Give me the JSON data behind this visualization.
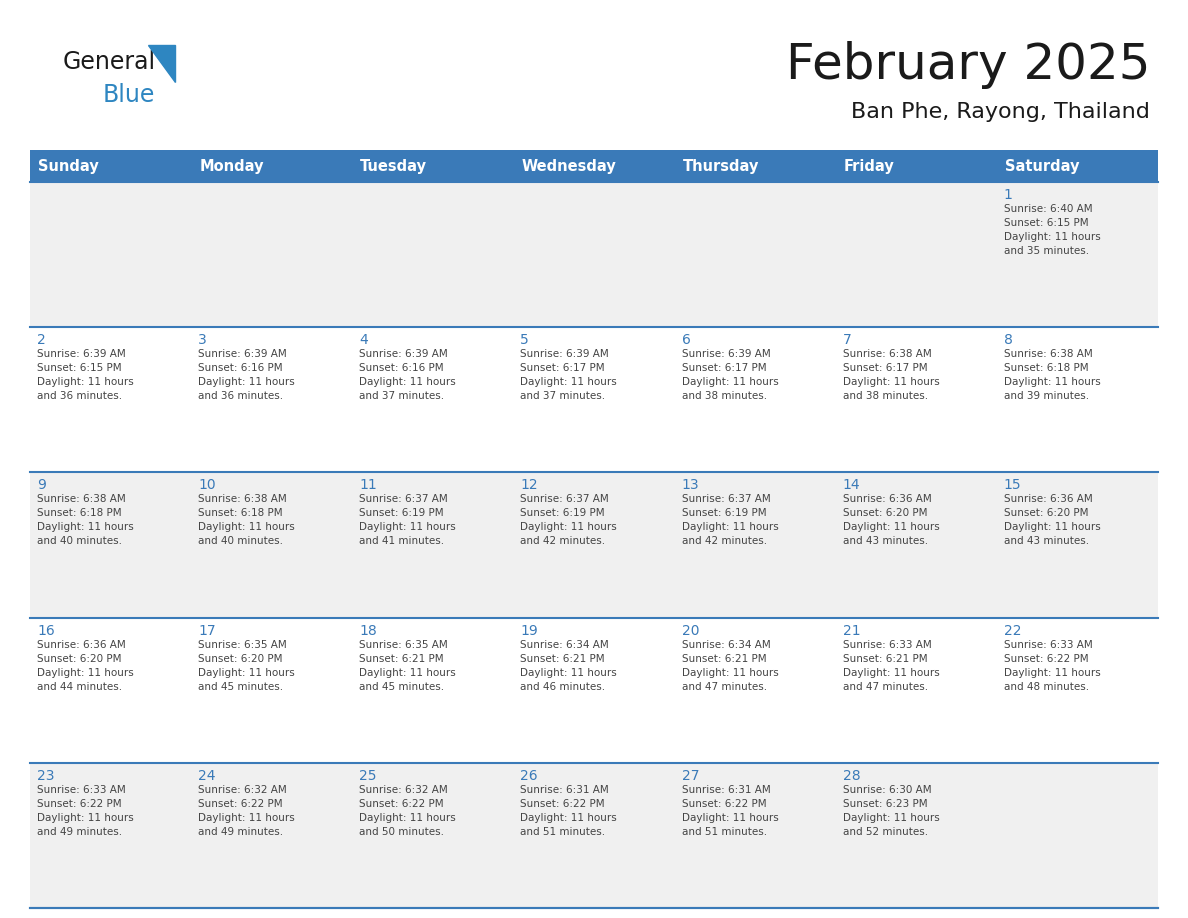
{
  "title": "February 2025",
  "subtitle": "Ban Phe, Rayong, Thailand",
  "header_color": "#3A7AB8",
  "header_text_color": "#FFFFFF",
  "days_of_week": [
    "Sunday",
    "Monday",
    "Tuesday",
    "Wednesday",
    "Thursday",
    "Friday",
    "Saturday"
  ],
  "bg_color": "#FFFFFF",
  "cell_bg_row0": "#F0F0F0",
  "cell_bg_row1": "#FFFFFF",
  "cell_bg_row2": "#F0F0F0",
  "cell_bg_row3": "#FFFFFF",
  "cell_bg_row4": "#F0F0F0",
  "border_color": "#3A7AB8",
  "day_num_color": "#3A7AB8",
  "text_color": "#444444",
  "title_color": "#1a1a1a",
  "logo_general_color": "#1a1a1a",
  "logo_blue_color": "#2E86C1",
  "calendar_data": [
    [
      null,
      null,
      null,
      null,
      null,
      null,
      {
        "day": "1",
        "sunrise": "6:40 AM",
        "sunset": "6:15 PM",
        "daylight": "11 hours\nand 35 minutes."
      }
    ],
    [
      {
        "day": "2",
        "sunrise": "6:39 AM",
        "sunset": "6:15 PM",
        "daylight": "11 hours\nand 36 minutes."
      },
      {
        "day": "3",
        "sunrise": "6:39 AM",
        "sunset": "6:16 PM",
        "daylight": "11 hours\nand 36 minutes."
      },
      {
        "day": "4",
        "sunrise": "6:39 AM",
        "sunset": "6:16 PM",
        "daylight": "11 hours\nand 37 minutes."
      },
      {
        "day": "5",
        "sunrise": "6:39 AM",
        "sunset": "6:17 PM",
        "daylight": "11 hours\nand 37 minutes."
      },
      {
        "day": "6",
        "sunrise": "6:39 AM",
        "sunset": "6:17 PM",
        "daylight": "11 hours\nand 38 minutes."
      },
      {
        "day": "7",
        "sunrise": "6:38 AM",
        "sunset": "6:17 PM",
        "daylight": "11 hours\nand 38 minutes."
      },
      {
        "day": "8",
        "sunrise": "6:38 AM",
        "sunset": "6:18 PM",
        "daylight": "11 hours\nand 39 minutes."
      }
    ],
    [
      {
        "day": "9",
        "sunrise": "6:38 AM",
        "sunset": "6:18 PM",
        "daylight": "11 hours\nand 40 minutes."
      },
      {
        "day": "10",
        "sunrise": "6:38 AM",
        "sunset": "6:18 PM",
        "daylight": "11 hours\nand 40 minutes."
      },
      {
        "day": "11",
        "sunrise": "6:37 AM",
        "sunset": "6:19 PM",
        "daylight": "11 hours\nand 41 minutes."
      },
      {
        "day": "12",
        "sunrise": "6:37 AM",
        "sunset": "6:19 PM",
        "daylight": "11 hours\nand 42 minutes."
      },
      {
        "day": "13",
        "sunrise": "6:37 AM",
        "sunset": "6:19 PM",
        "daylight": "11 hours\nand 42 minutes."
      },
      {
        "day": "14",
        "sunrise": "6:36 AM",
        "sunset": "6:20 PM",
        "daylight": "11 hours\nand 43 minutes."
      },
      {
        "day": "15",
        "sunrise": "6:36 AM",
        "sunset": "6:20 PM",
        "daylight": "11 hours\nand 43 minutes."
      }
    ],
    [
      {
        "day": "16",
        "sunrise": "6:36 AM",
        "sunset": "6:20 PM",
        "daylight": "11 hours\nand 44 minutes."
      },
      {
        "day": "17",
        "sunrise": "6:35 AM",
        "sunset": "6:20 PM",
        "daylight": "11 hours\nand 45 minutes."
      },
      {
        "day": "18",
        "sunrise": "6:35 AM",
        "sunset": "6:21 PM",
        "daylight": "11 hours\nand 45 minutes."
      },
      {
        "day": "19",
        "sunrise": "6:34 AM",
        "sunset": "6:21 PM",
        "daylight": "11 hours\nand 46 minutes."
      },
      {
        "day": "20",
        "sunrise": "6:34 AM",
        "sunset": "6:21 PM",
        "daylight": "11 hours\nand 47 minutes."
      },
      {
        "day": "21",
        "sunrise": "6:33 AM",
        "sunset": "6:21 PM",
        "daylight": "11 hours\nand 47 minutes."
      },
      {
        "day": "22",
        "sunrise": "6:33 AM",
        "sunset": "6:22 PM",
        "daylight": "11 hours\nand 48 minutes."
      }
    ],
    [
      {
        "day": "23",
        "sunrise": "6:33 AM",
        "sunset": "6:22 PM",
        "daylight": "11 hours\nand 49 minutes."
      },
      {
        "day": "24",
        "sunrise": "6:32 AM",
        "sunset": "6:22 PM",
        "daylight": "11 hours\nand 49 minutes."
      },
      {
        "day": "25",
        "sunrise": "6:32 AM",
        "sunset": "6:22 PM",
        "daylight": "11 hours\nand 50 minutes."
      },
      {
        "day": "26",
        "sunrise": "6:31 AM",
        "sunset": "6:22 PM",
        "daylight": "11 hours\nand 51 minutes."
      },
      {
        "day": "27",
        "sunrise": "6:31 AM",
        "sunset": "6:22 PM",
        "daylight": "11 hours\nand 51 minutes."
      },
      {
        "day": "28",
        "sunrise": "6:30 AM",
        "sunset": "6:23 PM",
        "daylight": "11 hours\nand 52 minutes."
      },
      null
    ]
  ]
}
